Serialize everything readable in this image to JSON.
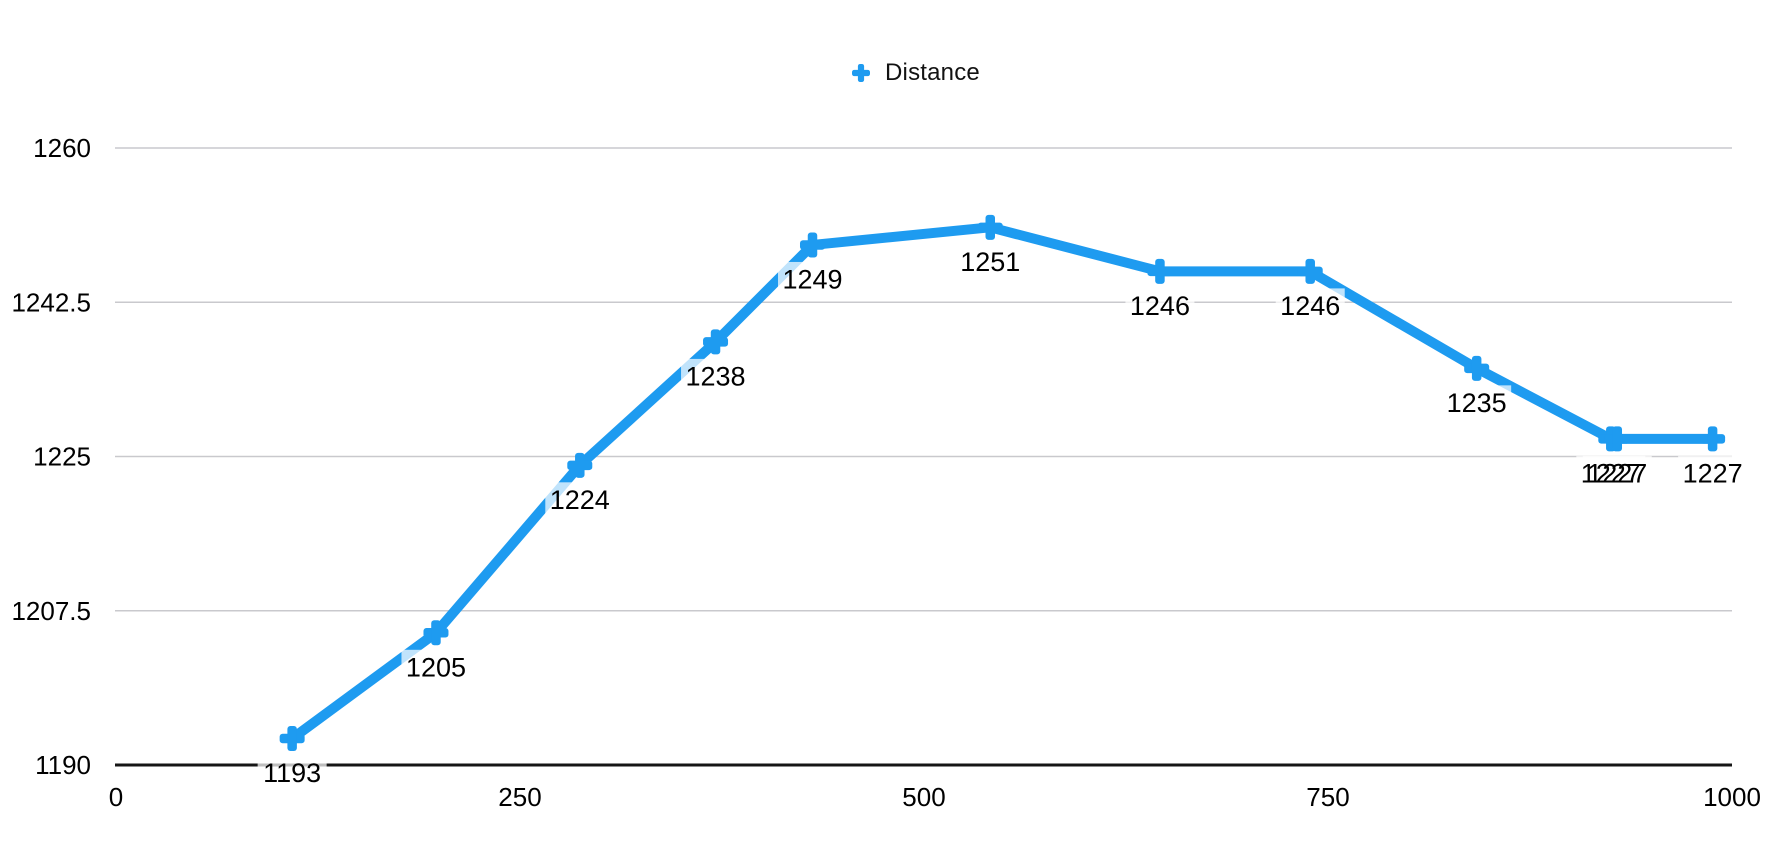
{
  "legend": {
    "label": "Distance"
  },
  "colors": {
    "line": "#1E9BF0",
    "grid": "#C9C9CD",
    "axis": "#161616",
    "text": "#000000",
    "label_halo": "rgba(255,255,255,0.72)"
  },
  "chart_data": {
    "type": "line",
    "title": "",
    "legend_entries": [
      "Distance"
    ],
    "legend_position": "top-center",
    "grid": "horizontal",
    "xlim": [
      0,
      1000
    ],
    "ylim": [
      1190,
      1260
    ],
    "x_ticks": [
      {
        "value": 0,
        "label": "0"
      },
      {
        "value": 250,
        "label": "250"
      },
      {
        "value": 500,
        "label": "500"
      },
      {
        "value": 750,
        "label": "750"
      },
      {
        "value": 1000,
        "label": "1000"
      }
    ],
    "y_ticks": [
      {
        "value": 1190,
        "label": "1190"
      },
      {
        "value": 1207.5,
        "label": "1207.5"
      },
      {
        "value": 1225,
        "label": "1225"
      },
      {
        "value": 1242.5,
        "label": "1242.5"
      },
      {
        "value": 1260,
        "label": "1260"
      }
    ],
    "series": [
      {
        "name": "Distance",
        "marker": "plus",
        "color": "#1E9BF0",
        "points": [
          {
            "x": 109,
            "y": 1193,
            "label": "1193"
          },
          {
            "x": 198,
            "y": 1205,
            "label": "1205"
          },
          {
            "x": 287,
            "y": 1224,
            "label": "1224"
          },
          {
            "x": 371,
            "y": 1238,
            "label": "1238"
          },
          {
            "x": 431,
            "y": 1249,
            "label": "1249"
          },
          {
            "x": 541,
            "y": 1251,
            "label": "1251"
          },
          {
            "x": 646,
            "y": 1246,
            "label": "1246"
          },
          {
            "x": 739,
            "y": 1246,
            "label": "1246"
          },
          {
            "x": 842,
            "y": 1235,
            "label": "1235"
          },
          {
            "x": 925,
            "y": 1227,
            "label": "1227"
          },
          {
            "x": 929,
            "y": 1227,
            "label": "1227"
          },
          {
            "x": 988,
            "y": 1227,
            "label": "1227"
          }
        ]
      }
    ]
  }
}
